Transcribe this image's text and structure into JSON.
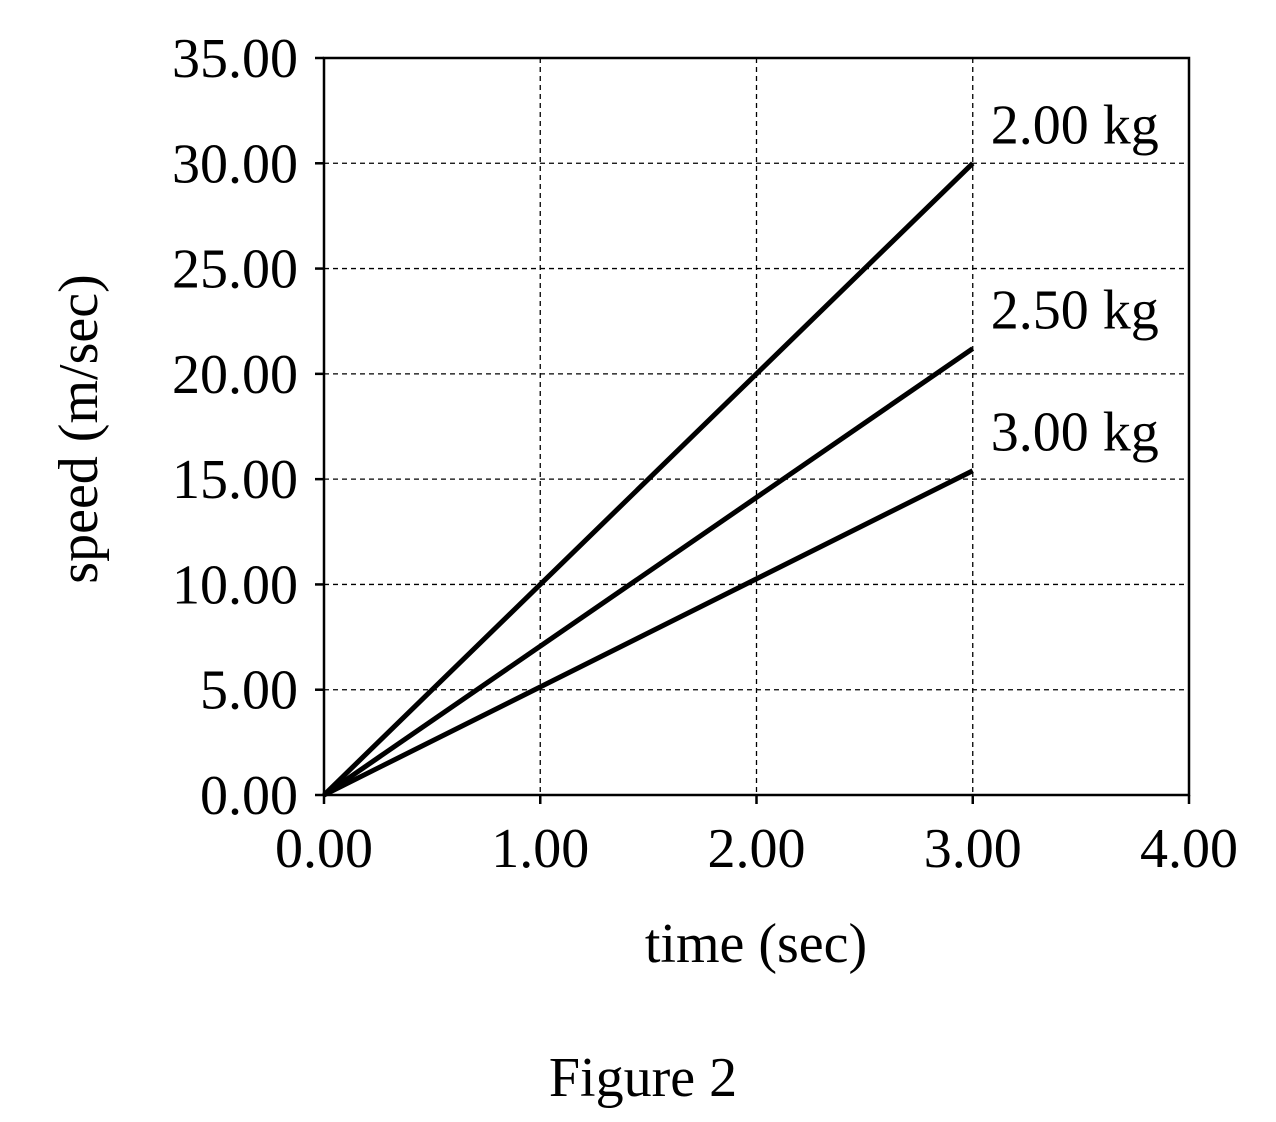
{
  "chart_data": {
    "type": "line",
    "title": "",
    "xlabel": "time (sec)",
    "ylabel": "speed (m/sec)",
    "xlim": [
      0,
      4
    ],
    "ylim": [
      0,
      35
    ],
    "x_ticks": [
      "0.00",
      "1.00",
      "2.00",
      "3.00",
      "4.00"
    ],
    "y_ticks": [
      "0.00",
      "5.00",
      "10.00",
      "15.00",
      "20.00",
      "25.00",
      "30.00",
      "35.00"
    ],
    "grid": true,
    "legend": "none",
    "series": [
      {
        "name": "2.00 kg",
        "x": [
          0,
          3
        ],
        "y": [
          0,
          30.0
        ]
      },
      {
        "name": "2.50 kg",
        "x": [
          0,
          3
        ],
        "y": [
          0,
          21.2
        ]
      },
      {
        "name": "3.00 kg",
        "x": [
          0,
          3
        ],
        "y": [
          0,
          15.4
        ]
      }
    ],
    "line_color": "#000000"
  },
  "caption": "Figure 2"
}
